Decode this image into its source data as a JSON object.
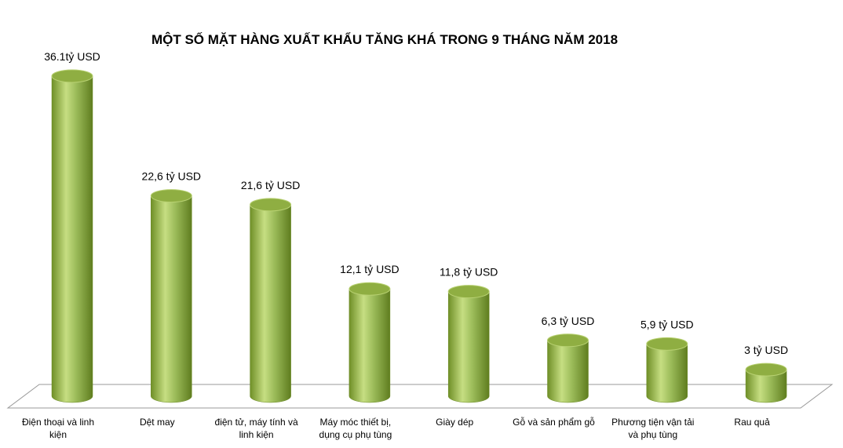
{
  "chart_data": {
    "type": "bar3d_cylinder",
    "title": "MỘT SỐ MẶT HÀNG XUẤT KHẨU TĂNG KHÁ TRONG 9 THÁNG NĂM 2018",
    "categories": [
      "Điện thoại và linh kiện",
      "Dệt may",
      "điện tử, máy tính và linh kiện",
      "Máy móc thiết bị, dụng cụ phụ tùng",
      "Giày dép",
      "Gỗ và sản phẩm gỗ",
      "Phương tiện vận tải và phụ tùng",
      "Rau quả"
    ],
    "values": [
      36.1,
      22.6,
      21.6,
      12.1,
      11.8,
      6.3,
      5.9,
      3
    ],
    "value_labels": [
      "36.1tỷ USD",
      "22,6 tỷ USD",
      "21,6 tỷ USD",
      "12,1 tỷ USD",
      "11,8 tỷ USD",
      "6,3 tỷ USD",
      "5,9 tỷ USD",
      "3 tỷ USD"
    ],
    "color": "#9bbb59"
  }
}
